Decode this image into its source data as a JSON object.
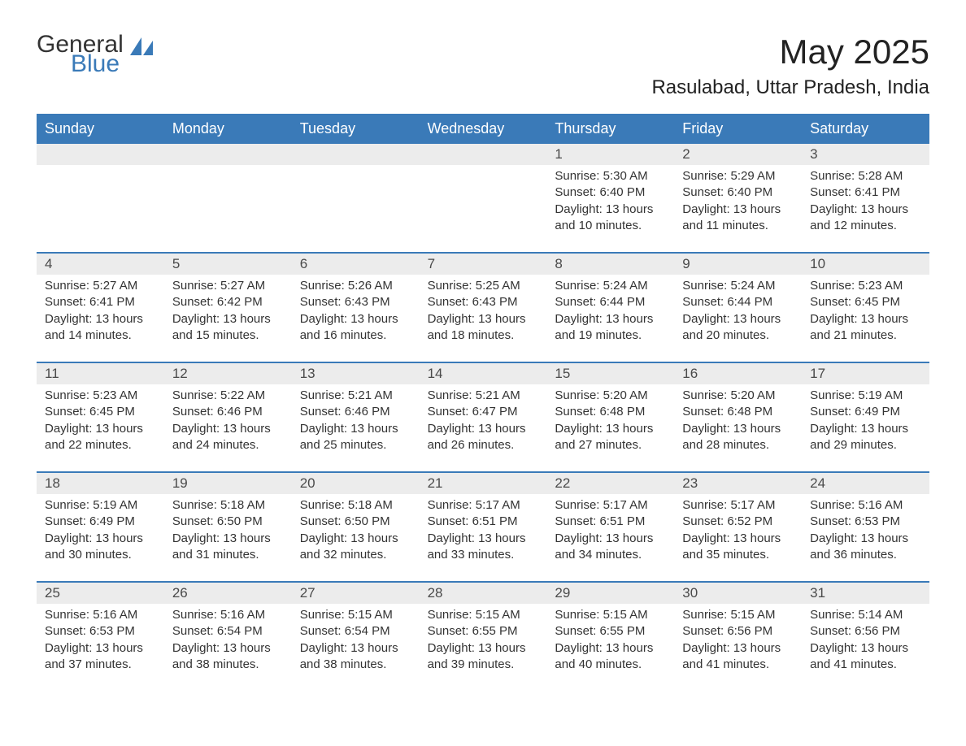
{
  "logo": {
    "text_general": "General",
    "text_blue": "Blue",
    "sail_color": "#3a7ab8"
  },
  "title": "May 2025",
  "location": "Rasulabad, Uttar Pradesh, India",
  "colors": {
    "header_bg": "#3a7ab8",
    "header_text": "#ffffff",
    "daynum_bg": "#ececec",
    "body_text": "#333333",
    "week_border": "#3a7ab8",
    "page_bg": "#ffffff"
  },
  "days_of_week": [
    "Sunday",
    "Monday",
    "Tuesday",
    "Wednesday",
    "Thursday",
    "Friday",
    "Saturday"
  ],
  "weeks": [
    [
      {
        "empty": true
      },
      {
        "empty": true
      },
      {
        "empty": true
      },
      {
        "empty": true
      },
      {
        "n": "1",
        "sunrise": "5:30 AM",
        "sunset": "6:40 PM",
        "daylight": "13 hours and 10 minutes."
      },
      {
        "n": "2",
        "sunrise": "5:29 AM",
        "sunset": "6:40 PM",
        "daylight": "13 hours and 11 minutes."
      },
      {
        "n": "3",
        "sunrise": "5:28 AM",
        "sunset": "6:41 PM",
        "daylight": "13 hours and 12 minutes."
      }
    ],
    [
      {
        "n": "4",
        "sunrise": "5:27 AM",
        "sunset": "6:41 PM",
        "daylight": "13 hours and 14 minutes."
      },
      {
        "n": "5",
        "sunrise": "5:27 AM",
        "sunset": "6:42 PM",
        "daylight": "13 hours and 15 minutes."
      },
      {
        "n": "6",
        "sunrise": "5:26 AM",
        "sunset": "6:43 PM",
        "daylight": "13 hours and 16 minutes."
      },
      {
        "n": "7",
        "sunrise": "5:25 AM",
        "sunset": "6:43 PM",
        "daylight": "13 hours and 18 minutes."
      },
      {
        "n": "8",
        "sunrise": "5:24 AM",
        "sunset": "6:44 PM",
        "daylight": "13 hours and 19 minutes."
      },
      {
        "n": "9",
        "sunrise": "5:24 AM",
        "sunset": "6:44 PM",
        "daylight": "13 hours and 20 minutes."
      },
      {
        "n": "10",
        "sunrise": "5:23 AM",
        "sunset": "6:45 PM",
        "daylight": "13 hours and 21 minutes."
      }
    ],
    [
      {
        "n": "11",
        "sunrise": "5:23 AM",
        "sunset": "6:45 PM",
        "daylight": "13 hours and 22 minutes."
      },
      {
        "n": "12",
        "sunrise": "5:22 AM",
        "sunset": "6:46 PM",
        "daylight": "13 hours and 24 minutes."
      },
      {
        "n": "13",
        "sunrise": "5:21 AM",
        "sunset": "6:46 PM",
        "daylight": "13 hours and 25 minutes."
      },
      {
        "n": "14",
        "sunrise": "5:21 AM",
        "sunset": "6:47 PM",
        "daylight": "13 hours and 26 minutes."
      },
      {
        "n": "15",
        "sunrise": "5:20 AM",
        "sunset": "6:48 PM",
        "daylight": "13 hours and 27 minutes."
      },
      {
        "n": "16",
        "sunrise": "5:20 AM",
        "sunset": "6:48 PM",
        "daylight": "13 hours and 28 minutes."
      },
      {
        "n": "17",
        "sunrise": "5:19 AM",
        "sunset": "6:49 PM",
        "daylight": "13 hours and 29 minutes."
      }
    ],
    [
      {
        "n": "18",
        "sunrise": "5:19 AM",
        "sunset": "6:49 PM",
        "daylight": "13 hours and 30 minutes."
      },
      {
        "n": "19",
        "sunrise": "5:18 AM",
        "sunset": "6:50 PM",
        "daylight": "13 hours and 31 minutes."
      },
      {
        "n": "20",
        "sunrise": "5:18 AM",
        "sunset": "6:50 PM",
        "daylight": "13 hours and 32 minutes."
      },
      {
        "n": "21",
        "sunrise": "5:17 AM",
        "sunset": "6:51 PM",
        "daylight": "13 hours and 33 minutes."
      },
      {
        "n": "22",
        "sunrise": "5:17 AM",
        "sunset": "6:51 PM",
        "daylight": "13 hours and 34 minutes."
      },
      {
        "n": "23",
        "sunrise": "5:17 AM",
        "sunset": "6:52 PM",
        "daylight": "13 hours and 35 minutes."
      },
      {
        "n": "24",
        "sunrise": "5:16 AM",
        "sunset": "6:53 PM",
        "daylight": "13 hours and 36 minutes."
      }
    ],
    [
      {
        "n": "25",
        "sunrise": "5:16 AM",
        "sunset": "6:53 PM",
        "daylight": "13 hours and 37 minutes."
      },
      {
        "n": "26",
        "sunrise": "5:16 AM",
        "sunset": "6:54 PM",
        "daylight": "13 hours and 38 minutes."
      },
      {
        "n": "27",
        "sunrise": "5:15 AM",
        "sunset": "6:54 PM",
        "daylight": "13 hours and 38 minutes."
      },
      {
        "n": "28",
        "sunrise": "5:15 AM",
        "sunset": "6:55 PM",
        "daylight": "13 hours and 39 minutes."
      },
      {
        "n": "29",
        "sunrise": "5:15 AM",
        "sunset": "6:55 PM",
        "daylight": "13 hours and 40 minutes."
      },
      {
        "n": "30",
        "sunrise": "5:15 AM",
        "sunset": "6:56 PM",
        "daylight": "13 hours and 41 minutes."
      },
      {
        "n": "31",
        "sunrise": "5:14 AM",
        "sunset": "6:56 PM",
        "daylight": "13 hours and 41 minutes."
      }
    ]
  ],
  "labels": {
    "sunrise": "Sunrise: ",
    "sunset": "Sunset: ",
    "daylight": "Daylight: "
  }
}
